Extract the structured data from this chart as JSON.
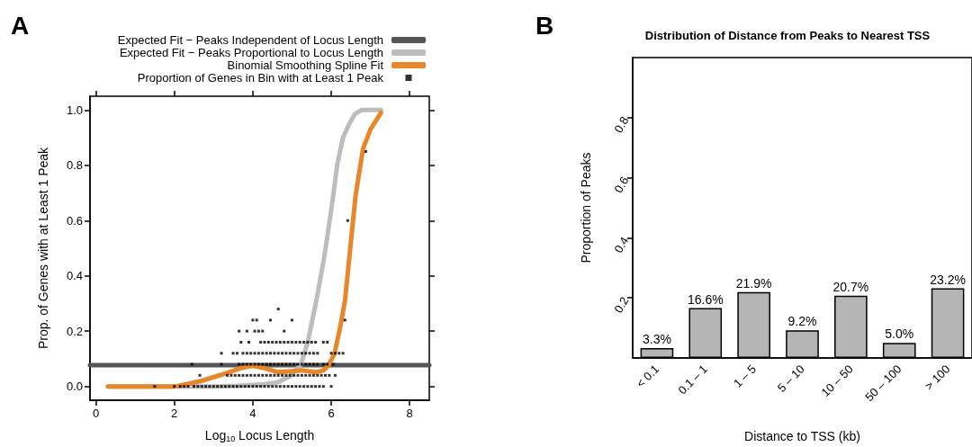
{
  "chart_data": [
    {
      "type": "line",
      "annotations": [
        "A"
      ],
      "xlabel": "Log$_{10}$ Locus Length",
      "ylabel": "Prop. of Genes with at Least 1 Peak",
      "xlim": [
        -0.15,
        8.5
      ],
      "xticks": [
        0,
        2,
        4,
        6,
        8
      ],
      "ylim": [
        -0.05,
        1.05
      ],
      "yticks": [
        {
          "value": 0,
          "label": "0.0"
        },
        0.2,
        0.4,
        0.6,
        0.8,
        {
          "value": 1,
          "label": "1.0"
        }
      ],
      "legend": "top",
      "grid": false,
      "series": [
        {
          "name": "Expected Fit − Peaks Independent of Locus Length",
          "type": "line",
          "color": "#555555",
          "x": [
            -0.15,
            8.5
          ],
          "values": [
            0.077,
            0.077
          ]
        },
        {
          "name": "Expected Fit − Peaks Proportional to Locus Length",
          "type": "line",
          "color": "#bdbdbd",
          "x": [
            0.31,
            2.0,
            3.0,
            3.6,
            4.3,
            4.62,
            4.95,
            5.23,
            5.4,
            5.62,
            5.8,
            5.92,
            6.05,
            6.15,
            6.3,
            6.46,
            6.6,
            6.77,
            7.0,
            7.27
          ],
          "values": [
            0,
            0,
            0,
            0.002,
            0.008,
            0.014,
            0.036,
            0.08,
            0.16,
            0.31,
            0.45,
            0.56,
            0.69,
            0.8,
            0.9,
            0.95,
            0.985,
            1.0,
            1.0,
            1.0
          ]
        },
        {
          "name": "Binomial Smoothing Spline Fit",
          "type": "line",
          "color": "#e8862a",
          "x": [
            0.31,
            1.5,
            2.0,
            2.15,
            2.69,
            3.31,
            3.69,
            4.0,
            4.3,
            4.62,
            5.0,
            5.23,
            5.62,
            5.8,
            5.92,
            6.08,
            6.23,
            6.35,
            6.46,
            6.62,
            6.81,
            7.0,
            7.27
          ],
          "values": [
            0,
            0,
            0,
            0.003,
            0.02,
            0.047,
            0.066,
            0.074,
            0.066,
            0.052,
            0.055,
            0.058,
            0.052,
            0.058,
            0.074,
            0.117,
            0.215,
            0.31,
            0.465,
            0.69,
            0.86,
            0.93,
            0.99
          ]
        },
        {
          "name": "Proportion of Genes in Bin with at Least 1 Peak",
          "type": "scatter",
          "color": "#000000",
          "marker": "square",
          "x": [
            1.5,
            2.0,
            2.15,
            2.25,
            2.35,
            2.5,
            2.6,
            2.7,
            2.8,
            2.9,
            3.0,
            3.1,
            3.2,
            3.3,
            3.4,
            3.5,
            3.6,
            3.7,
            3.8,
            3.9,
            4.0,
            4.1,
            4.2,
            4.3,
            4.4,
            4.5,
            4.6,
            4.7,
            4.8,
            4.9,
            5.0,
            5.1,
            5.2,
            5.3,
            5.4,
            5.5,
            5.6,
            5.7,
            5.8,
            6.0,
            2.65,
            3.35,
            3.45,
            3.55,
            3.65,
            3.75,
            3.85,
            3.95,
            4.05,
            4.15,
            4.25,
            4.35,
            4.45,
            4.55,
            4.65,
            4.75,
            4.85,
            4.95,
            5.05,
            5.15,
            5.25,
            5.35,
            5.45,
            5.55,
            5.65,
            5.75,
            5.85,
            5.95,
            6.1,
            2.45,
            3.2,
            3.65,
            3.75,
            3.85,
            3.95,
            4.05,
            4.15,
            4.25,
            4.35,
            4.45,
            4.55,
            4.65,
            4.75,
            4.85,
            4.95,
            5.05,
            5.15,
            5.25,
            5.35,
            5.45,
            5.55,
            5.65,
            5.8,
            5.9,
            6.05,
            3.2,
            3.5,
            3.6,
            3.75,
            3.85,
            3.95,
            4.05,
            4.15,
            4.25,
            4.35,
            4.45,
            4.55,
            4.65,
            4.75,
            4.85,
            4.95,
            5.05,
            5.15,
            5.25,
            5.35,
            5.45,
            5.55,
            5.65,
            6.0,
            6.1,
            6.2,
            6.3,
            3.7,
            3.9,
            4.2,
            4.3,
            4.4,
            4.5,
            4.6,
            4.7,
            4.8,
            4.9,
            5.0,
            5.1,
            5.2,
            5.3,
            5.4,
            5.5,
            5.6,
            5.8,
            5.9,
            3.65,
            3.85,
            4.05,
            4.15,
            4.25,
            4.8,
            4.0,
            4.1,
            4.45,
            5.0,
            6.35,
            4.65,
            6.42,
            6.88
          ],
          "values": [
            0,
            0,
            0,
            0,
            0,
            0,
            0,
            0,
            0,
            0,
            0,
            0,
            0,
            0,
            0,
            0,
            0,
            0,
            0,
            0,
            0,
            0,
            0,
            0,
            0,
            0,
            0,
            0,
            0,
            0,
            0,
            0,
            0,
            0,
            0,
            0,
            0,
            0,
            0,
            0,
            0.04,
            0.04,
            0.04,
            0.04,
            0.04,
            0.04,
            0.04,
            0.04,
            0.04,
            0.04,
            0.04,
            0.04,
            0.04,
            0.04,
            0.04,
            0.04,
            0.04,
            0.04,
            0.04,
            0.04,
            0.04,
            0.04,
            0.04,
            0.04,
            0.04,
            0.04,
            0.04,
            0.04,
            0.04,
            0.08,
            0.08,
            0.08,
            0.08,
            0.08,
            0.08,
            0.08,
            0.08,
            0.08,
            0.08,
            0.08,
            0.08,
            0.08,
            0.08,
            0.08,
            0.08,
            0.08,
            0.08,
            0.08,
            0.08,
            0.08,
            0.08,
            0.08,
            0.08,
            0.08,
            0.08,
            0.12,
            0.12,
            0.12,
            0.12,
            0.12,
            0.12,
            0.12,
            0.12,
            0.12,
            0.12,
            0.12,
            0.12,
            0.12,
            0.12,
            0.12,
            0.12,
            0.12,
            0.12,
            0.12,
            0.12,
            0.12,
            0.12,
            0.12,
            0.12,
            0.12,
            0.12,
            0.12,
            0.16,
            0.16,
            0.16,
            0.16,
            0.16,
            0.16,
            0.16,
            0.16,
            0.16,
            0.16,
            0.16,
            0.16,
            0.16,
            0.16,
            0.16,
            0.16,
            0.16,
            0.16,
            0.16,
            0.2,
            0.2,
            0.2,
            0.2,
            0.2,
            0.2,
            0.24,
            0.24,
            0.24,
            0.24,
            0.24,
            0.28,
            0.6,
            0.85
          ]
        }
      ]
    },
    {
      "type": "bar",
      "annotations": [
        "B"
      ],
      "title": "Distribution of Distance from Peaks to Nearest TSS",
      "xlabel": "Distance to TSS (kb)",
      "ylabel": "Proportion of Peaks",
      "categories": [
        "< 0.1",
        "0.1 – 1",
        "1 – 5",
        "5 – 10",
        "10 – 50",
        "50 – 100",
        "> 100"
      ],
      "values": [
        0.033,
        0.166,
        0.219,
        0.092,
        0.207,
        0.05,
        0.232
      ],
      "color": "#b5b5b5",
      "value_labels": [
        "3.3%",
        "16.6%",
        "21.9%",
        "9.2%",
        "20.7%",
        "5.0%",
        "23.2%"
      ],
      "ylim": [
        0,
        1.0
      ],
      "yticks": [
        0.2,
        0.4,
        0.6,
        0.8
      ],
      "grid": false
    }
  ]
}
